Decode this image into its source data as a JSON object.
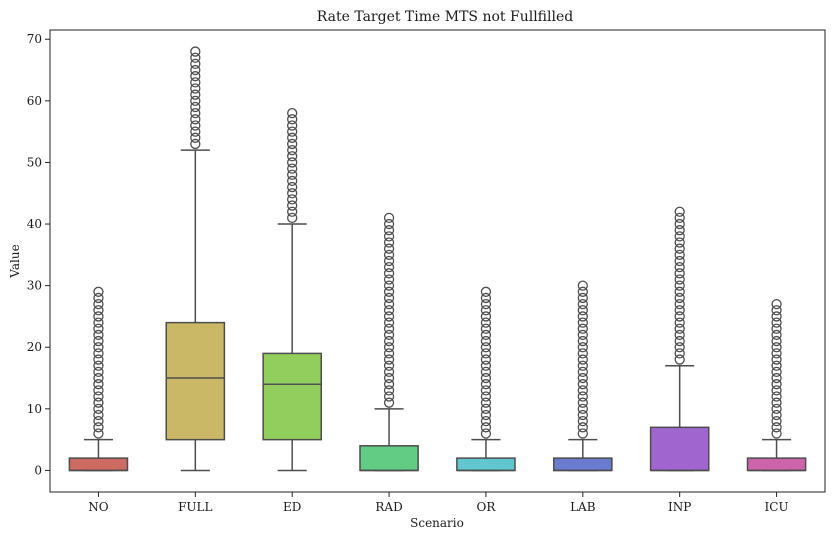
{
  "chart_data": {
    "type": "box",
    "title": "Rate Target Time MTS not Fullfilled",
    "xlabel": "Scenario",
    "ylabel": "Value",
    "ylim": [
      -3.5,
      71.5
    ],
    "yticks": [
      0,
      10,
      20,
      30,
      40,
      50,
      60,
      70
    ],
    "grid": false,
    "categories": [
      "NO",
      "FULL",
      "ED",
      "RAD",
      "OR",
      "LAB",
      "INP",
      "ICU"
    ],
    "colors": [
      "#cd6a62",
      "#cbb866",
      "#91ce5e",
      "#62cc85",
      "#62c6d0",
      "#6a7bd0",
      "#a065cf",
      "#cc64a9"
    ],
    "boxes": [
      {
        "min": 0,
        "q1": 0,
        "median": 0,
        "q3": 2,
        "max": 5,
        "outlier_range": [
          6,
          29
        ]
      },
      {
        "min": 0,
        "q1": 5,
        "median": 15,
        "q3": 24,
        "max": 52,
        "outlier_range": [
          53,
          68
        ]
      },
      {
        "min": 0,
        "q1": 5,
        "median": 14,
        "q3": 19,
        "max": 40,
        "outlier_range": [
          41,
          58
        ]
      },
      {
        "min": 0,
        "q1": 0,
        "median": 0,
        "q3": 4,
        "max": 10,
        "outlier_range": [
          11,
          41
        ]
      },
      {
        "min": 0,
        "q1": 0,
        "median": 0,
        "q3": 2,
        "max": 5,
        "outlier_range": [
          6,
          29
        ]
      },
      {
        "min": 0,
        "q1": 0,
        "median": 0,
        "q3": 2,
        "max": 5,
        "outlier_range": [
          6,
          30
        ]
      },
      {
        "min": 0,
        "q1": 0,
        "median": 0,
        "q3": 7,
        "max": 17,
        "outlier_range": [
          18,
          42
        ]
      },
      {
        "min": 0,
        "q1": 0,
        "median": 0,
        "q3": 2,
        "max": 5,
        "outlier_range": [
          6,
          27
        ]
      }
    ]
  }
}
